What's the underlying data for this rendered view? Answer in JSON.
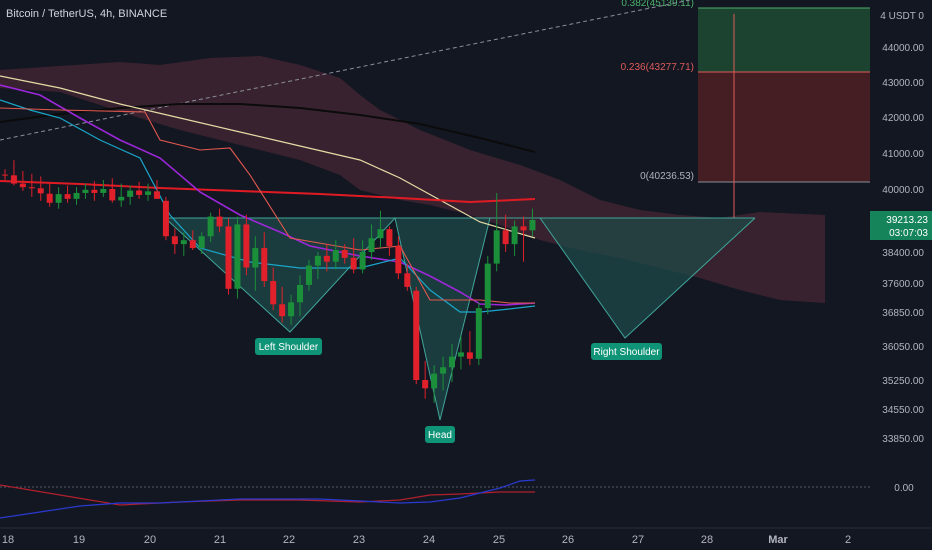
{
  "header": {
    "title": "Bitcoin / TetherUS, 4h, BINANCE"
  },
  "price_axis": {
    "ticks": [
      "4 USDT 0",
      "44000.00",
      "43000.00",
      "42000.00",
      "41000.00",
      "40000.00",
      "38400.00",
      "37600.00",
      "36850.00",
      "36050.00",
      "35250.00",
      "34550.00",
      "33850.00"
    ],
    "current_price": "39213.23",
    "countdown": "03:07:03",
    "oscillator_zero": "0.00"
  },
  "fib_labels": [
    "0.382(45139.11)",
    "0.236(43277.71)",
    "0(40236.53)"
  ],
  "pattern_labels": {
    "left_shoulder": "Left Shoulder",
    "head": "Head",
    "right_shoulder": "Right Shoulder"
  },
  "colors": {
    "background": "#131722",
    "up": "#1b8f3a",
    "down": "#e0202a",
    "ema_red": "#e01b24",
    "ema_black": "#0b0b0b",
    "ema_yellow": "#e6dba6",
    "purple": "#9c27d9",
    "cyan": "#1aa6c9",
    "salmon": "#e0584f",
    "label_teal": "#109477",
    "pattern_fill": "#1f4a48",
    "cloud": "#3e2331"
  },
  "chart_data": {
    "type": "candlestick",
    "x_tick_labels": [
      "18",
      "19",
      "20",
      "21",
      "22",
      "23",
      "24",
      "25",
      "26",
      "27",
      "28",
      "Mar",
      "2"
    ],
    "y_range": [
      33500,
      45500
    ],
    "candles": [
      [
        40400,
        40550,
        40250,
        40380
      ],
      [
        40380,
        40800,
        40100,
        40150
      ],
      [
        40150,
        40500,
        39950,
        40050
      ],
      [
        40050,
        40420,
        39800,
        40020
      ],
      [
        40020,
        40350,
        39700,
        39890
      ],
      [
        39880,
        40150,
        39550,
        39650
      ],
      [
        39650,
        40050,
        39500,
        39870
      ],
      [
        39870,
        40100,
        39650,
        39750
      ],
      [
        39750,
        40050,
        39600,
        39900
      ],
      [
        39900,
        40150,
        39750,
        39980
      ],
      [
        39980,
        40220,
        39700,
        39900
      ],
      [
        39900,
        40250,
        39800,
        40000
      ],
      [
        40000,
        40300,
        39650,
        39710
      ],
      [
        39710,
        40150,
        39550,
        39800
      ],
      [
        39800,
        40100,
        39600,
        39960
      ],
      [
        39960,
        40200,
        39750,
        39850
      ],
      [
        39850,
        40150,
        39700,
        39940
      ],
      [
        39940,
        40250,
        39750,
        39750
      ],
      [
        39700,
        39800,
        38700,
        38800
      ],
      [
        38800,
        39000,
        38350,
        38600
      ],
      [
        38600,
        38900,
        38300,
        38700
      ],
      [
        38700,
        38950,
        38450,
        38500
      ],
      [
        38500,
        38900,
        38350,
        38800
      ],
      [
        38800,
        39400,
        38650,
        39300
      ],
      [
        39300,
        39500,
        38900,
        39050
      ],
      [
        39050,
        39250,
        37300,
        37450
      ],
      [
        37450,
        39300,
        37200,
        39100
      ],
      [
        39100,
        39350,
        37800,
        38000
      ],
      [
        38000,
        38800,
        37400,
        38500
      ],
      [
        38500,
        38900,
        37500,
        37650
      ],
      [
        37650,
        38000,
        36900,
        37050
      ],
      [
        37050,
        37500,
        36600,
        36750
      ],
      [
        36750,
        37300,
        36550,
        37100
      ],
      [
        37100,
        37800,
        36750,
        37550
      ],
      [
        37550,
        38200,
        37400,
        38050
      ],
      [
        38050,
        38400,
        37700,
        38300
      ],
      [
        38300,
        38600,
        37900,
        38150
      ],
      [
        38150,
        38700,
        37950,
        38450
      ],
      [
        38450,
        38600,
        38100,
        38250
      ],
      [
        38250,
        38750,
        37850,
        37950
      ],
      [
        37950,
        38700,
        37850,
        38400
      ],
      [
        38400,
        39100,
        38200,
        38750
      ],
      [
        38750,
        39450,
        38500,
        38980
      ],
      [
        38980,
        39050,
        38300,
        38550
      ],
      [
        38550,
        38800,
        37700,
        37850
      ],
      [
        37850,
        38100,
        37400,
        37500
      ],
      [
        37400,
        37500,
        35150,
        35250
      ],
      [
        35250,
        35700,
        34800,
        35050
      ],
      [
        35050,
        35600,
        34700,
        35400
      ],
      [
        35400,
        35800,
        35000,
        35550
      ],
      [
        35550,
        36100,
        35200,
        35800
      ],
      [
        35800,
        36300,
        35500,
        35900
      ],
      [
        35900,
        36400,
        35600,
        35750
      ],
      [
        35750,
        37100,
        35600,
        36950
      ],
      [
        36950,
        38300,
        36800,
        38100
      ],
      [
        38100,
        39900,
        37900,
        38950
      ],
      [
        38950,
        39350,
        38400,
        38600
      ],
      [
        38600,
        39200,
        38300,
        39050
      ],
      [
        39050,
        39300,
        38150,
        38950
      ],
      [
        38950,
        39500,
        38800,
        39213
      ]
    ]
  }
}
